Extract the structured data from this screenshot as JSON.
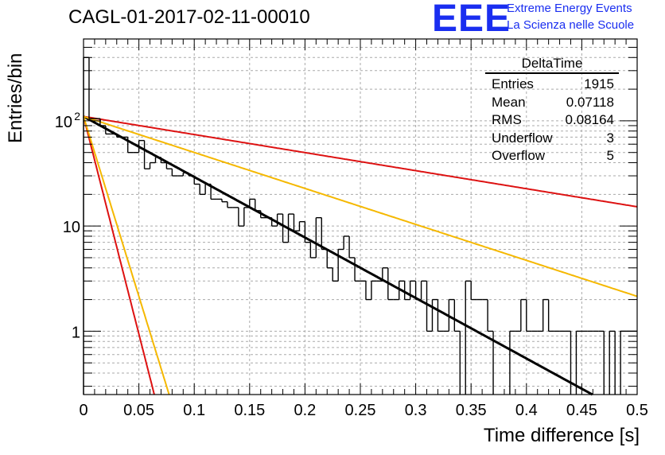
{
  "title": "CAGL-01-2017-02-11-00010",
  "logo": {
    "text": "EEE",
    "line1": "Extreme Energy Events",
    "line2": "La Scienza nelle Scuole",
    "color": "#1a2ef0"
  },
  "stats_box": {
    "title": "DeltaTime",
    "rows": [
      {
        "label": "Entries",
        "value": "1915"
      },
      {
        "label": "Mean",
        "value": "0.07118"
      },
      {
        "label": "RMS",
        "value": "0.08164"
      },
      {
        "label": "Underflow",
        "value": "3"
      },
      {
        "label": "Overflow",
        "value": "5"
      }
    ]
  },
  "chart_data": {
    "type": "histogram",
    "title": "CAGL-01-2017-02-11-00010",
    "xlabel": "Time difference [s]",
    "ylabel": "Entries/bin",
    "x_range": [
      0,
      0.5
    ],
    "y_range": [
      0.25,
      600
    ],
    "y_scale": "log",
    "grid": true,
    "x_ticks": [
      "0",
      "0.05",
      "0.1",
      "0.15",
      "0.2",
      "0.25",
      "0.3",
      "0.35",
      "0.4",
      "0.45",
      "0.5"
    ],
    "x_tick_values": [
      0,
      0.05,
      0.1,
      0.15,
      0.2,
      0.25,
      0.3,
      0.35,
      0.4,
      0.45,
      0.5
    ],
    "y_ticks": [
      {
        "value": 1,
        "label": "1"
      },
      {
        "value": 10,
        "label": "10"
      },
      {
        "value": 100,
        "label": "10",
        "sup": "2"
      }
    ],
    "bin_width": 0.005,
    "bin_values": [
      400,
      105,
      105,
      90,
      75,
      75,
      70,
      70,
      50,
      50,
      65,
      35,
      40,
      45,
      40,
      35,
      30,
      30,
      32,
      30,
      25,
      20,
      25,
      18,
      18,
      17,
      15,
      15,
      10,
      15,
      18,
      14,
      12,
      12,
      10,
      13,
      7,
      13,
      9,
      11,
      7,
      5,
      12,
      6,
      4,
      3,
      6,
      8,
      5,
      3,
      3,
      2,
      3,
      3,
      4,
      2,
      2,
      3,
      2,
      3,
      2,
      3,
      1,
      2,
      1,
      1,
      2,
      1,
      0,
      3,
      2,
      2,
      2,
      1,
      0,
      0,
      0,
      1,
      1,
      2,
      1,
      1,
      1,
      2,
      1,
      1,
      1,
      1,
      0,
      1,
      1,
      1,
      1,
      1,
      0,
      1,
      0,
      1,
      1,
      1
    ],
    "series": [
      {
        "color": "#000000",
        "y0": 110,
        "tau": 0.0755
      },
      {
        "color": "#dd1111",
        "y0": 110,
        "tau": 0.253
      },
      {
        "color": "#f5b800",
        "y0": 110,
        "tau": 0.127
      },
      {
        "color": "#dd1111",
        "y0": 110,
        "tau": 0.0105
      },
      {
        "color": "#f5b800",
        "y0": 110,
        "tau": 0.0127
      }
    ]
  }
}
